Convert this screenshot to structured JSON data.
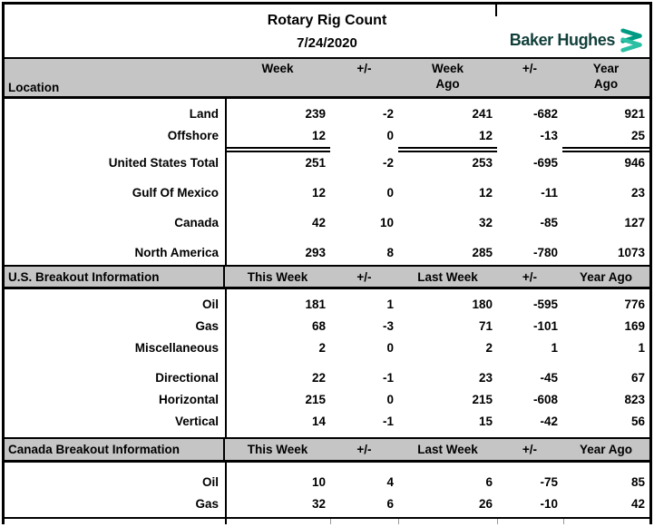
{
  "title": {
    "heading": "Rotary Rig Count",
    "date": "7/24/2020"
  },
  "logo": {
    "text": "Baker Hughes",
    "mark": "double-chevron-icon"
  },
  "colors": {
    "band_bg": "#c5c5c5",
    "border": "#000000",
    "logo_text": "#113f3a",
    "chevron_top": "#009b84",
    "chevron_bottom": "#2bbfa4"
  },
  "header": {
    "label": "Location",
    "columns": [
      {
        "line1": "Week",
        "line2": ""
      },
      {
        "line1": "+/-",
        "line2": ""
      },
      {
        "line1": "Week",
        "line2": "Ago"
      },
      {
        "line1": "+/-",
        "line2": ""
      },
      {
        "line1": "Year",
        "line2": "Ago"
      }
    ]
  },
  "sections": [
    {
      "rows": [
        {
          "label": "Land",
          "values": [
            "239",
            "-2",
            "241",
            "-682",
            "921"
          ]
        },
        {
          "label": "Offshore",
          "values": [
            "12",
            "0",
            "12",
            "-13",
            "25"
          ],
          "underline": true
        },
        {
          "label": "United States Total",
          "values": [
            "251",
            "-2",
            "253",
            "-695",
            "946"
          ]
        },
        {
          "label": "Gulf Of Mexico",
          "values": [
            "12",
            "0",
            "12",
            "-11",
            "23"
          ],
          "gap": true
        },
        {
          "label": "Canada",
          "values": [
            "42",
            "10",
            "32",
            "-85",
            "127"
          ],
          "gap": true
        },
        {
          "label": "North America",
          "values": [
            "293",
            "8",
            "285",
            "-780",
            "1073"
          ],
          "gap": true
        }
      ]
    },
    {
      "band": {
        "label": "U.S. Breakout Information",
        "columns": [
          "This Week",
          "+/-",
          "Last Week",
          "+/-",
          "Year Ago"
        ]
      },
      "rows": [
        {
          "label": "Oil",
          "values": [
            "181",
            "1",
            "180",
            "-595",
            "776"
          ]
        },
        {
          "label": "Gas",
          "values": [
            "68",
            "-3",
            "71",
            "-101",
            "169"
          ]
        },
        {
          "label": "Miscellaneous",
          "values": [
            "2",
            "0",
            "2",
            "1",
            "1"
          ]
        },
        {
          "label": "Directional",
          "values": [
            "22",
            "-1",
            "23",
            "-45",
            "67"
          ],
          "gap": true
        },
        {
          "label": "Horizontal",
          "values": [
            "215",
            "0",
            "215",
            "-608",
            "823"
          ]
        },
        {
          "label": "Vertical",
          "values": [
            "14",
            "-1",
            "15",
            "-42",
            "56"
          ]
        }
      ]
    },
    {
      "band": {
        "label": "Canada Breakout Information",
        "columns": [
          "This Week",
          "+/-",
          "Last Week",
          "+/-",
          "Year Ago"
        ]
      },
      "rows": [
        {
          "label": "Oil",
          "values": [
            "10",
            "4",
            "6",
            "-75",
            "85"
          ]
        },
        {
          "label": "Gas",
          "values": [
            "32",
            "6",
            "26",
            "-10",
            "42"
          ]
        }
      ]
    }
  ]
}
